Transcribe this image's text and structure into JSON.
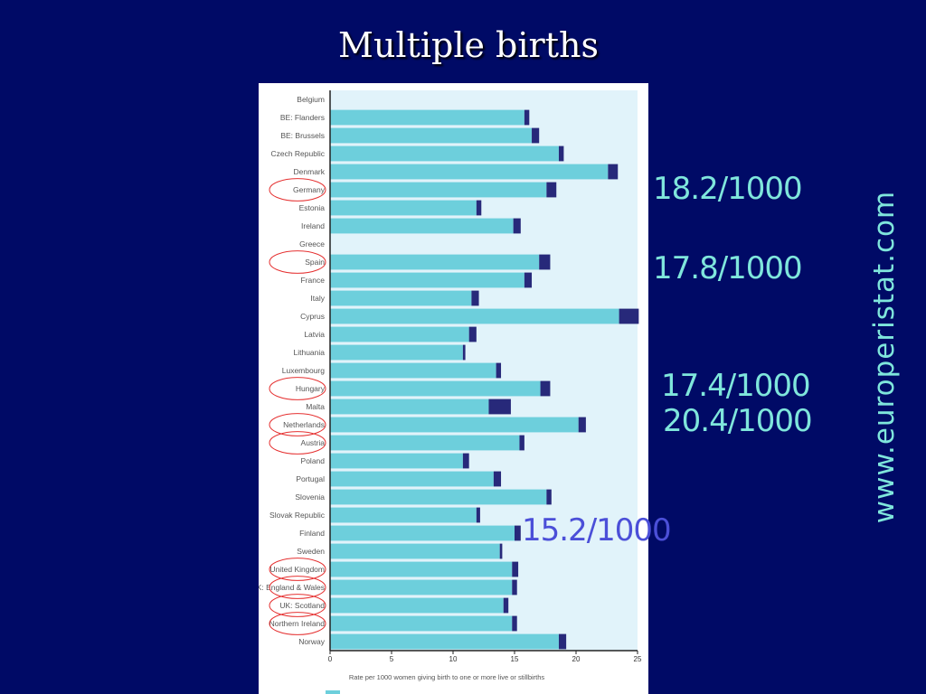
{
  "slide": {
    "title": "Multiple births",
    "watermark": "www.europeristat.com"
  },
  "annotations": [
    {
      "text": "18.2/1000",
      "color": "#7fe6dc"
    },
    {
      "text": "17.8/1000",
      "color": "#7fe6dc"
    },
    {
      "text": "17.4/1000",
      "color": "#7fe6dc"
    },
    {
      "text": "20.4/1000",
      "color": "#7fe6dc"
    },
    {
      "text": "15.2/1000",
      "color": "#4b4fd8"
    }
  ],
  "colors": {
    "background": "#000a66",
    "plot_background": "#e1f3fa",
    "bar_primary": "#6dcfdc",
    "bar_secondary": "#27297a",
    "highlight_circle": "#e53030",
    "watermark": "#7fe6dc"
  },
  "chart_data": {
    "type": "bar",
    "orientation": "horizontal",
    "stacked": true,
    "categories": [
      "Belgium",
      "BE: Flanders",
      "BE: Brussels",
      "Czech Republic",
      "Denmark",
      "Germany",
      "Estonia",
      "Ireland",
      "Greece",
      "Spain",
      "France",
      "Italy",
      "Cyprus",
      "Latvia",
      "Lithuania",
      "Luxembourg",
      "Hungary",
      "Malta",
      "Netherlands",
      "Austria",
      "Poland",
      "Portugal",
      "Slovenia",
      "Slovak Republic",
      "Finland",
      "Sweden",
      "United Kingdom",
      "UK: England & Wales",
      "UK: Scotland",
      "Northern Ireland",
      "Norway"
    ],
    "series": [
      {
        "values": [
          null,
          15.8,
          16.4,
          18.6,
          22.6,
          17.6,
          11.9,
          14.9,
          null,
          17.0,
          15.8,
          11.5,
          23.5,
          11.3,
          10.8,
          13.5,
          17.1,
          12.9,
          20.2,
          15.4,
          10.8,
          13.3,
          17.6,
          11.9,
          15.0,
          13.8,
          14.8,
          14.8,
          14.1,
          14.8,
          18.6
        ]
      },
      {
        "values": [
          null,
          0.4,
          0.6,
          0.4,
          0.8,
          0.8,
          0.4,
          0.6,
          null,
          0.9,
          0.6,
          0.6,
          1.6,
          0.6,
          0.2,
          0.4,
          0.8,
          1.8,
          0.6,
          0.4,
          0.5,
          0.6,
          0.4,
          0.3,
          0.5,
          0.2,
          0.5,
          0.4,
          0.4,
          0.4,
          0.6
        ]
      }
    ],
    "xlim": [
      0,
      25
    ],
    "xticks": [
      0,
      5,
      10,
      15,
      20,
      25
    ],
    "xlabel": "Rate per 1000 women giving birth to one or more live or stillbirths",
    "highlighted_categories": [
      "Germany",
      "Spain",
      "Hungary",
      "Netherlands",
      "Austria",
      "United Kingdom",
      "UK: England & Wales",
      "UK: Scotland",
      "Northern Ireland"
    ]
  }
}
